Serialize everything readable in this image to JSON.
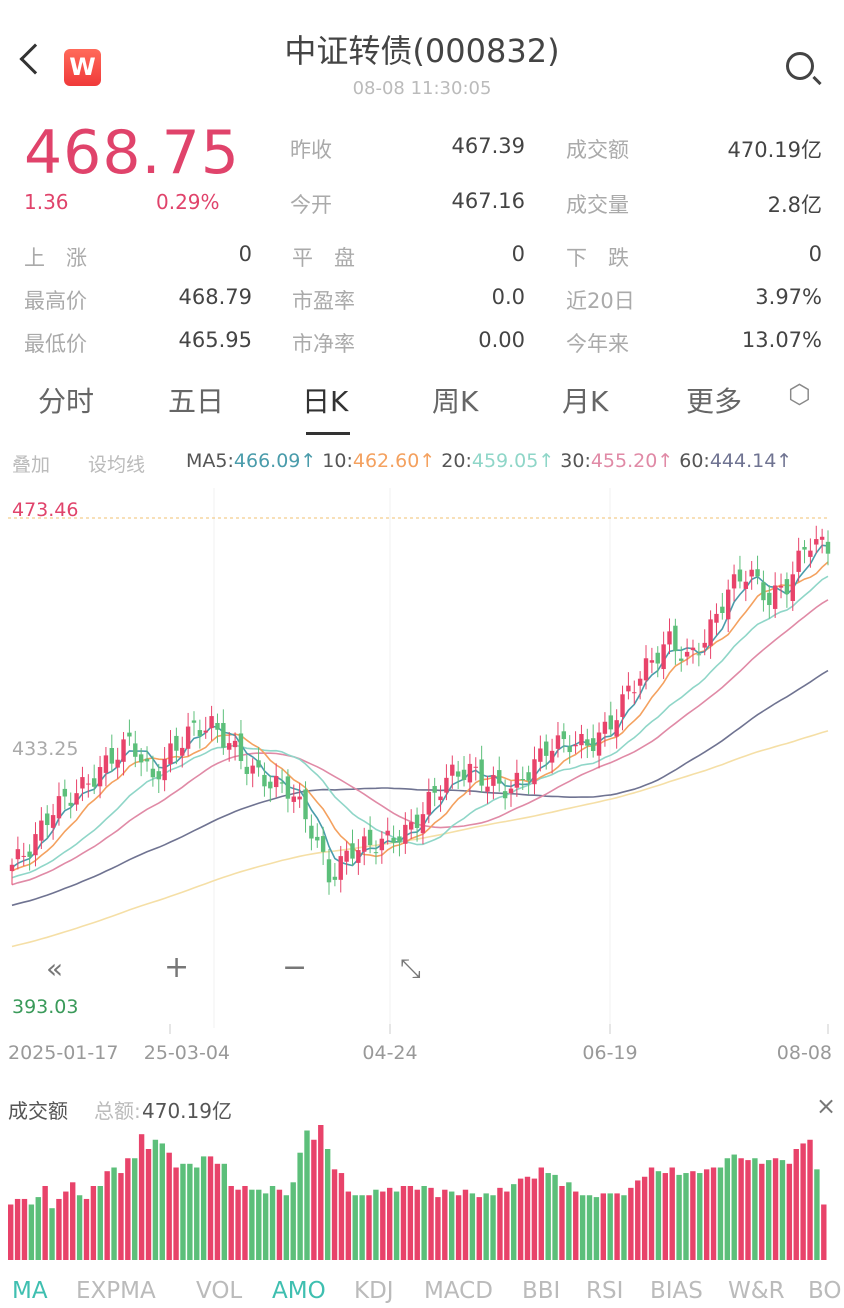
{
  "header": {
    "title": "中证转债(000832)",
    "time": "08-08 11:30:05",
    "logo": "W"
  },
  "quote": {
    "price": "468.75",
    "change": "1.36",
    "change_pct": "0.29%"
  },
  "stats": [
    {
      "label": "昨收",
      "value": "467.39"
    },
    {
      "label": "成交额",
      "value": "470.19亿"
    },
    {
      "label": "今开",
      "value": "467.16"
    },
    {
      "label": "成交量",
      "value": "2.8亿"
    },
    {
      "label": "上　涨",
      "value": "0"
    },
    {
      "label": "平　盘",
      "value": "0"
    },
    {
      "label": "下　跌",
      "value": "0"
    },
    {
      "label": "最高价",
      "value": "468.79"
    },
    {
      "label": "市盈率",
      "value": "0.0"
    },
    {
      "label": "近20日",
      "value": "3.97%"
    },
    {
      "label": "最低价",
      "value": "465.95"
    },
    {
      "label": "市净率",
      "value": "0.00"
    },
    {
      "label": "今年来",
      "value": "13.07%"
    }
  ],
  "tabs": [
    "分时",
    "五日",
    "日K",
    "周K",
    "月K",
    "更多"
  ],
  "active_tab": "日K",
  "overlay": {
    "add": "叠加",
    "set_ma": "设均线"
  },
  "ma_legend": [
    {
      "name": "MA5:",
      "value": "466.09↑",
      "color": "#4a9cab"
    },
    {
      "name": "10:",
      "value": "462.60↑",
      "color": "#f4a15f"
    },
    {
      "name": "20:",
      "value": "459.05↑",
      "color": "#8fd6c8"
    },
    {
      "name": "30:",
      "value": "455.20↑",
      "color": "#e08aa6"
    },
    {
      "name": "60:",
      "value": "444.14↑",
      "color": "#6f7391"
    }
  ],
  "colors": {
    "up": "#e8436a",
    "down": "#5cbf7a",
    "ma120": "#f5dfa6"
  },
  "chart_data": {
    "type": "candlestick",
    "y_labels": {
      "max": "473.46",
      "mid": "433.25",
      "min": "393.03"
    },
    "ylim": [
      393.03,
      473.46
    ],
    "x_labels": [
      "2025-01-17",
      "25-03-04",
      "04-24",
      "06-19",
      "08-08"
    ],
    "close_path": [
      417.9,
      421,
      426.7,
      429,
      431.5,
      435,
      437.9,
      431.5,
      436,
      439.5,
      440.3,
      437,
      433.1,
      431,
      429.9,
      424,
      415.5,
      420.3,
      421.1,
      422,
      423.5,
      428.3,
      432.3,
      433.1,
      431,
      429.9,
      433,
      437.1,
      437.5,
      437.1,
      440,
      445.9,
      450,
      453.9,
      450.7,
      455,
      462,
      465.1,
      460.3,
      463,
      469.9,
      468.75
    ]
  },
  "controls": {
    "rewind": "«",
    "zoom_in": "+",
    "zoom_out": "−",
    "expand": "⤡"
  },
  "volume": {
    "title": "成交额",
    "total_label": "总额:",
    "total": "470.19亿",
    "close": "×",
    "levels": [
      30,
      33,
      33,
      30,
      34,
      40,
      28,
      33,
      37,
      42,
      35,
      33,
      40,
      40,
      48,
      50,
      47,
      55,
      55,
      68,
      60,
      65,
      63,
      58,
      50,
      52,
      52,
      50,
      56,
      56,
      52,
      52,
      40,
      38,
      40,
      38,
      38,
      36,
      40,
      38,
      35,
      42,
      58,
      70,
      65,
      75,
      60,
      49,
      47,
      37,
      35,
      35,
      35,
      38,
      37,
      39,
      37,
      40,
      40,
      38,
      40,
      39,
      34,
      38,
      37,
      35,
      38,
      36,
      34,
      36,
      35,
      39,
      37,
      41,
      44,
      45,
      44,
      50,
      47,
      46,
      40,
      42,
      37,
      35,
      35,
      34,
      36,
      36,
      36,
      35,
      39,
      43,
      45,
      50,
      48,
      47,
      50,
      46,
      47,
      48,
      47,
      49,
      50,
      50,
      55,
      57,
      55,
      54,
      55,
      52,
      54,
      55,
      54,
      52,
      60,
      63,
      65,
      49,
      30
    ],
    "down_idx": [
      3,
      4,
      6,
      10,
      13,
      15,
      18,
      21,
      22,
      25,
      26,
      27,
      28,
      31,
      35,
      36,
      37,
      38,
      40,
      41,
      42,
      43,
      46,
      50,
      51,
      53,
      56,
      60,
      64,
      67,
      69,
      70,
      73,
      78,
      79,
      81,
      83,
      84,
      85,
      87,
      89,
      94,
      97,
      98,
      100,
      103,
      104,
      105,
      108,
      110,
      112,
      117
    ]
  },
  "indicators": [
    "MA",
    "EXPMA",
    "VOL",
    "AMO",
    "KDJ",
    "MACD",
    "BBI",
    "RSI",
    "BIAS",
    "W&R",
    "BO"
  ],
  "active_indicators": [
    "MA",
    "AMO"
  ]
}
